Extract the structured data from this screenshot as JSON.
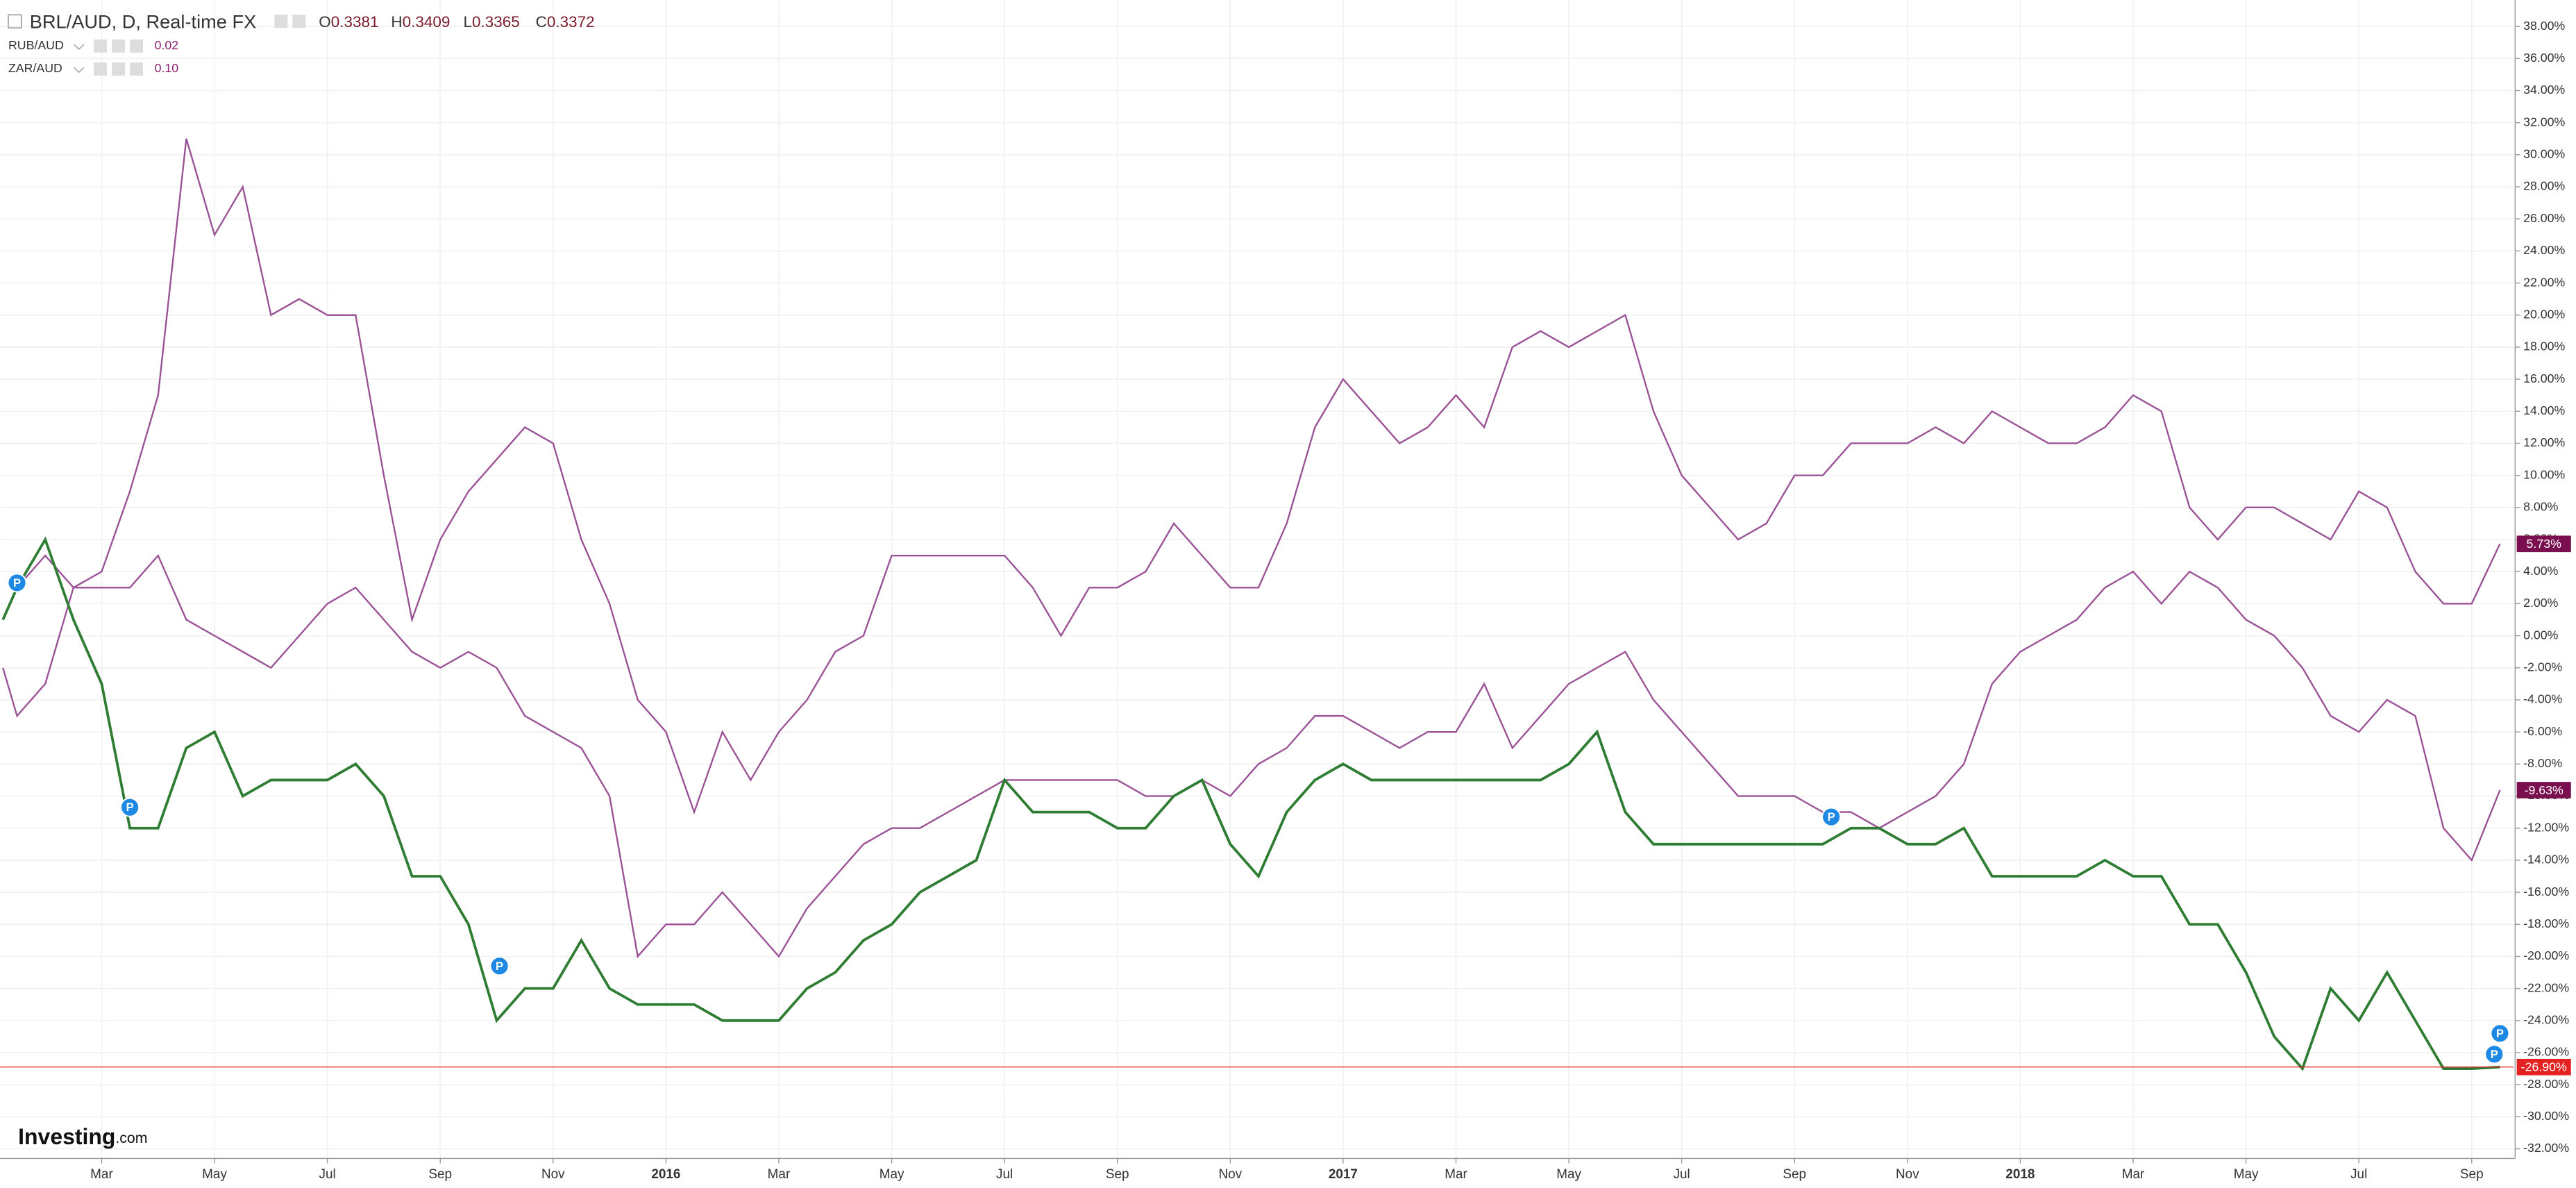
{
  "chart_data": {
    "type": "line",
    "symbol": "BRL/AUD, D, Real-time FX",
    "ohlc": [
      {
        "label": "O",
        "value": "0.3381"
      },
      {
        "label": "H",
        "value": "0.3409"
      },
      {
        "label": "L",
        "value": "0.3365"
      },
      {
        "label": "C",
        "value": "0.3372"
      }
    ],
    "logo": [
      "Investing",
      ".com"
    ],
    "x": [
      0.25,
      0.5,
      1,
      1.5,
      2,
      2.5,
      3,
      3.5,
      4,
      4.5,
      5,
      5.5,
      6,
      6.5,
      7,
      7.5,
      8,
      8.5,
      9,
      9.5,
      10,
      10.5,
      11,
      11.5,
      12,
      12.5,
      13,
      13.5,
      14,
      14.5,
      15,
      15.5,
      16,
      16.5,
      17,
      17.5,
      18,
      18.5,
      19,
      19.5,
      20,
      20.5,
      21,
      21.5,
      22,
      22.5,
      23,
      23.5,
      24,
      24.5,
      25,
      25.5,
      26,
      26.5,
      27,
      27.5,
      28,
      28.5,
      29,
      29.5,
      30,
      30.5,
      31,
      31.5,
      32,
      32.5,
      33,
      33.5,
      34,
      34.5,
      35,
      35.5,
      36,
      36.5,
      37,
      37.5,
      38,
      38.5,
      39,
      39.5,
      40,
      40.5,
      41,
      41.5,
      42,
      42.5,
      43,
      43.5,
      44,
      44.5
    ],
    "series": [
      {
        "name": "RUB/AUD",
        "legend_value": "0.02",
        "color": "#9b5196",
        "end_label": "5.73%",
        "end_color": "#7a0f4f",
        "values": [
          -2,
          -5,
          -3,
          3,
          4,
          9,
          15,
          31,
          25,
          28,
          20,
          21,
          20,
          20,
          10,
          1,
          6,
          9,
          11,
          13,
          12,
          6,
          2,
          -4,
          -6,
          -11,
          -6,
          -9,
          -6,
          -4,
          -1,
          0,
          5,
          5,
          5,
          5,
          5,
          3,
          0,
          3,
          3,
          4,
          7,
          5,
          3,
          3,
          7,
          13,
          16,
          14,
          12,
          13,
          15,
          13,
          18,
          19,
          18,
          19,
          20,
          14,
          10,
          8,
          6,
          7,
          10,
          10,
          12,
          12,
          12,
          13,
          12,
          14,
          13,
          12,
          12,
          13,
          15,
          14,
          8,
          6,
          8,
          8,
          7,
          6,
          9,
          8,
          4,
          2,
          2,
          5.73
        ]
      },
      {
        "name": "ZAR/AUD",
        "legend_value": "0.10",
        "color": "#9b5196",
        "end_label": "-9.63%",
        "end_color": "#7a0f4f",
        "values": [
          1,
          3,
          5,
          3,
          3,
          3,
          5,
          1,
          0,
          -1,
          -2,
          0,
          2,
          3,
          1,
          -1,
          -2,
          -1,
          -2,
          -5,
          -6,
          -7,
          -10,
          -20,
          -18,
          -18,
          -16,
          -18,
          -20,
          -17,
          -15,
          -13,
          -12,
          -12,
          -11,
          -10,
          -9,
          -9,
          -9,
          -9,
          -9,
          -10,
          -10,
          -9,
          -10,
          -8,
          -7,
          -5,
          -5,
          -6,
          -7,
          -6,
          -6,
          -3,
          -7,
          -5,
          -3,
          -2,
          -1,
          -4,
          -6,
          -8,
          -10,
          -10,
          -10,
          -11,
          -11,
          -12,
          -11,
          -10,
          -8,
          -3,
          -1,
          0,
          1,
          3,
          4,
          2,
          4,
          3,
          1,
          0,
          -2,
          -5,
          -6,
          -4,
          -5,
          -12,
          -14,
          -9.63
        ]
      },
      {
        "name": "BRL/AUD",
        "color": "#2e7d32",
        "end_label": "-26.90%",
        "end_color": "#e52222",
        "values": [
          1,
          3,
          6,
          1,
          -3,
          -12,
          -12,
          -7,
          -6,
          -10,
          -9,
          -9,
          -9,
          -8,
          -10,
          -15,
          -15,
          -18,
          -24,
          -22,
          -22,
          -19,
          -22,
          -23,
          -23,
          -23,
          -24,
          -24,
          -24,
          -22,
          -21,
          -19,
          -18,
          -16,
          -15,
          -14,
          -9,
          -11,
          -11,
          -11,
          -12,
          -12,
          -10,
          -9,
          -13,
          -15,
          -11,
          -9,
          -8,
          -9,
          -9,
          -9,
          -9,
          -9,
          -9,
          -9,
          -8,
          -6,
          -11,
          -13,
          -13,
          -13,
          -13,
          -13,
          -13,
          -13,
          -12,
          -12,
          -13,
          -13,
          -12,
          -15,
          -15,
          -15,
          -15,
          -14,
          -15,
          -15,
          -18,
          -18,
          -21,
          -25,
          -27,
          -22,
          -24,
          -21,
          -24,
          -27,
          -27,
          -26.9
        ]
      }
    ],
    "markers": [
      {
        "x": 0.5,
        "y": 3.3,
        "label": "P"
      },
      {
        "x": 2.5,
        "y": -10.7,
        "label": "P"
      },
      {
        "x": 9.05,
        "y": -20.6,
        "label": "P"
      },
      {
        "x": 32.65,
        "y": -11.3,
        "label": "P"
      },
      {
        "x": 44.5,
        "y": -24.8,
        "label": "P"
      },
      {
        "x": 44.4,
        "y": -26.1,
        "label": "P"
      }
    ],
    "xlim": [
      0.2,
      44.74
    ],
    "ylim": [
      -32.6,
      39.65
    ],
    "xticks": [
      {
        "value": 2,
        "label": "Mar"
      },
      {
        "value": 4,
        "label": "May"
      },
      {
        "value": 6,
        "label": "Jul"
      },
      {
        "value": 8,
        "label": "Sep"
      },
      {
        "value": 10,
        "label": "Nov"
      },
      {
        "value": 12,
        "label": "2016"
      },
      {
        "value": 14,
        "label": "Mar"
      },
      {
        "value": 16,
        "label": "May"
      },
      {
        "value": 18,
        "label": "Jul"
      },
      {
        "value": 20,
        "label": "Sep"
      },
      {
        "value": 22,
        "label": "Nov"
      },
      {
        "value": 24,
        "label": "2017"
      },
      {
        "value": 26,
        "label": "Mar"
      },
      {
        "value": 28,
        "label": "May"
      },
      {
        "value": 30,
        "label": "Jul"
      },
      {
        "value": 32,
        "label": "Sep"
      },
      {
        "value": 34,
        "label": "Nov"
      },
      {
        "value": 36,
        "label": "2018"
      },
      {
        "value": 38,
        "label": "Mar"
      },
      {
        "value": 40,
        "label": "May"
      },
      {
        "value": 42,
        "label": "Jul"
      },
      {
        "value": 44,
        "label": "Sep"
      }
    ],
    "yticks": [
      {
        "value": -32,
        "label": "-32.00%"
      },
      {
        "value": -30,
        "label": "-30.00%"
      },
      {
        "value": -28,
        "label": "-28.00%"
      },
      {
        "value": -26,
        "label": "-26.00%"
      },
      {
        "value": -24,
        "label": "-24.00%"
      },
      {
        "value": -22,
        "label": "-22.00%"
      },
      {
        "value": -20,
        "label": "-20.00%"
      },
      {
        "value": -18,
        "label": "-18.00%"
      },
      {
        "value": -16,
        "label": "-16.00%"
      },
      {
        "value": -14,
        "label": "-14.00%"
      },
      {
        "value": -12,
        "label": "-12.00%"
      },
      {
        "value": -10,
        "label": "-10.00%"
      },
      {
        "value": -8,
        "label": "-8.00%"
      },
      {
        "value": -6,
        "label": "-6.00%"
      },
      {
        "value": -4,
        "label": "-4.00%"
      },
      {
        "value": -2,
        "label": "-2.00%"
      },
      {
        "value": 0,
        "label": "0.00%"
      },
      {
        "value": 2,
        "label": "2.00%"
      },
      {
        "value": 4,
        "label": "4.00%"
      },
      {
        "value": 6,
        "label": "6.00%"
      },
      {
        "value": 8,
        "label": "8.00%"
      },
      {
        "value": 10,
        "label": "10.00%"
      },
      {
        "value": 12,
        "label": "12.00%"
      },
      {
        "value": 14,
        "label": "14.00%"
      },
      {
        "value": 16,
        "label": "16.00%"
      },
      {
        "value": 18,
        "label": "18.00%"
      },
      {
        "value": 20,
        "label": "20.00%"
      },
      {
        "value": 22,
        "label": "22.00%"
      },
      {
        "value": 24,
        "label": "24.00%"
      },
      {
        "value": 26,
        "label": "26.00%"
      },
      {
        "value": 28,
        "label": "28.00%"
      },
      {
        "value": 30,
        "label": "30.00%"
      },
      {
        "value": 32,
        "label": "32.00%"
      },
      {
        "value": 34,
        "label": "34.00%"
      },
      {
        "value": 36,
        "label": "36.00%"
      },
      {
        "value": 38,
        "label": "38.00%"
      }
    ],
    "grid": true
  }
}
